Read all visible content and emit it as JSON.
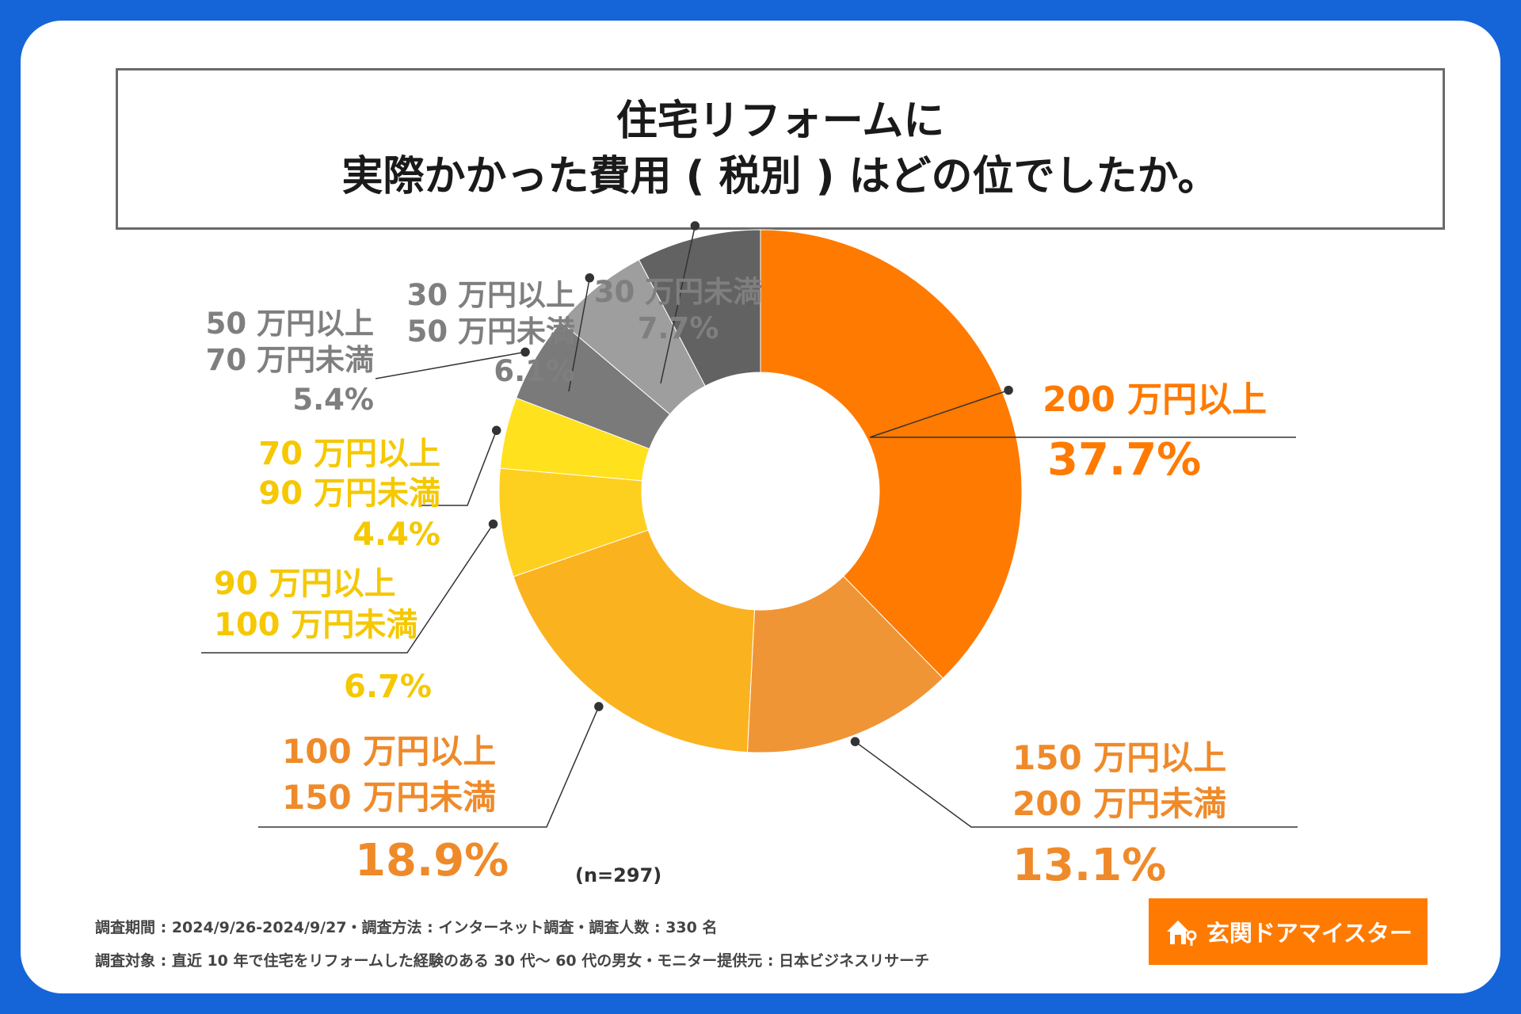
{
  "title": {
    "line1": "住宅リフォームに",
    "line2": "実際かかった費用 ( 税別 ) はどの位でしたか。"
  },
  "chart_data": {
    "type": "pie",
    "variant": "donut",
    "categories": [
      "200 万円以上",
      "150 万円以上 200 万円未満",
      "100 万円以上 150 万円未満",
      "90 万円以上 100 万円未満",
      "70 万円以上 90 万円未満",
      "50 万円以上 70 万円未満",
      "30 万円以上 50 万円未満",
      "30 万円未満"
    ],
    "values": [
      37.7,
      13.1,
      18.9,
      6.7,
      4.4,
      5.4,
      6.1,
      7.7
    ],
    "value_labels": [
      "37.7%",
      "13.1%",
      "18.9%",
      "6.7%",
      "4.4%",
      "5.4%",
      "6.1%",
      "7.7%"
    ],
    "colors": [
      "#ff7a00",
      "#f09535",
      "#fbb21f",
      "#fdd020",
      "#ffe11e",
      "#7a7a7a",
      "#9e9e9e",
      "#626262"
    ],
    "sample_size": "(n=297)"
  },
  "labels": {
    "l0": {
      "line1": "200 万円以上",
      "pct": "37.7%"
    },
    "l1": {
      "line1": "150 万円以上",
      "line2": "200 万円未満",
      "pct": "13.1%"
    },
    "l2": {
      "line1": "100 万円以上",
      "line2": "150 万円未満",
      "pct": "18.9%"
    },
    "l3": {
      "line1": "90 万円以上",
      "line2": "100 万円未満",
      "pct": "6.7%"
    },
    "l4": {
      "line1": "70 万円以上",
      "line2": "90 万円未満",
      "pct": "4.4%"
    },
    "l5": {
      "line1": "50 万円以上",
      "line2": "70 万円未満",
      "pct": "5.4%"
    },
    "l6": {
      "line1": "30 万円以上",
      "line2": "50 万円未満",
      "pct": "6.1%"
    },
    "l7": {
      "line1": "30 万円未満",
      "pct": "7.7%"
    }
  },
  "footnotes": {
    "line1": "調査期間 : 2024/9/26-2024/9/27・調査方法 : インターネット調査・調査人数 : 330 名",
    "line2": "調査対象 : 直近 10 年で住宅をリフォームした経験のある 30 代～ 60 代の男女・モニター提供元 : 日本ビジネスリサーチ"
  },
  "brand": {
    "name": "玄関ドアマイスター",
    "icon": "house-key-icon"
  }
}
